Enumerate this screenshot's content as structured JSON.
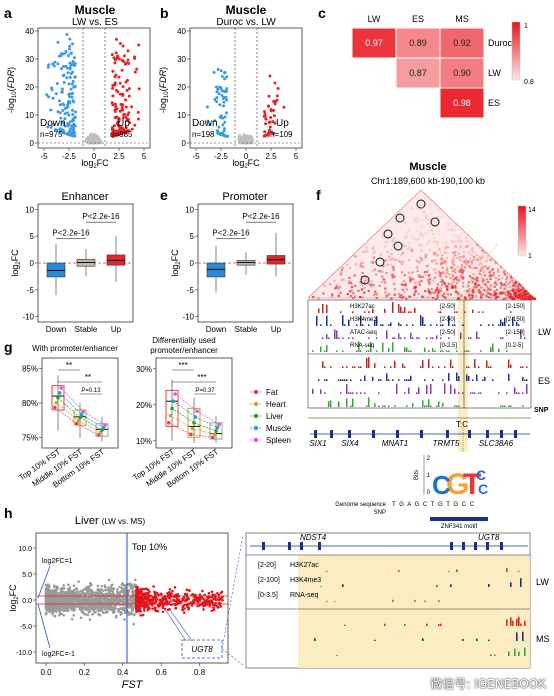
{
  "panels": {
    "a": {
      "letter": "a",
      "title": "Muscle",
      "subtitle": "LW vs. ES",
      "ylabel": "-log10(FDR)",
      "xlabel": "log2FC",
      "down_label": "Down",
      "down_n": "n=975",
      "up_label": "Up",
      "up_n": "n=885",
      "xticks": [
        "-5",
        "-2.5",
        "0",
        "2.5",
        "5"
      ],
      "yticks": [
        "0",
        "10",
        "20",
        "30",
        "40"
      ]
    },
    "b": {
      "letter": "b",
      "title": "Muscle",
      "subtitle": "Duroc vs. LW",
      "ylabel": "-log10(FDR)",
      "xlabel": "log2FC",
      "down_label": "Down",
      "down_n": "n=198",
      "up_label": "Up",
      "up_n": "n=109",
      "xticks": [
        "-5",
        "-2.5",
        "0",
        "2.5",
        "5"
      ],
      "yticks": [
        "0",
        "10",
        "20",
        "30",
        "40"
      ]
    },
    "c": {
      "letter": "c",
      "cols": [
        "LW",
        "ES",
        "MS"
      ],
      "rows": [
        "Duroc",
        "LW",
        "ES"
      ],
      "cells": [
        [
          "0.97",
          "0.89",
          "0.92"
        ],
        [
          "",
          "0.87",
          "0.90"
        ],
        [
          "",
          "",
          "0.98"
        ]
      ],
      "scale_max": "1",
      "scale_min": "0.8",
      "colors": {
        "high": "#e8141e",
        "low": "#fde6e6"
      }
    },
    "d": {
      "letter": "d",
      "title": "Enhancer",
      "ylabel": "log2FC",
      "categories": [
        "Down",
        "Stable",
        "Up"
      ],
      "p1": "P<2.2e-16",
      "p2": "P<2.2e-16",
      "yticks": [
        "-10",
        "-5",
        "0",
        "5",
        "10"
      ]
    },
    "e": {
      "letter": "e",
      "title": "Promoter",
      "ylabel": "log2FC",
      "categories": [
        "Down",
        "Stable",
        "Up"
      ],
      "p1": "P<2.2e-16",
      "p2": "P<2.2e-16",
      "yticks": [
        "-10",
        "-5",
        "0",
        "5",
        "10"
      ]
    },
    "f": {
      "letter": "f",
      "title": "Muscle",
      "coords": "Chr1:189,600 kb-190,100 kb",
      "scale_max": "14",
      "scale_min": "1",
      "tracks_lw": [
        {
          "name": "H3K27ac",
          "range": "[2-50]",
          "range_r": "[2-150]"
        },
        {
          "name": "H3K4me3",
          "range": "[2-50]",
          "range_r": "[2-150]"
        },
        {
          "name": "ATAC-seq",
          "range": "[2-50]",
          "range_r": "[2-150]"
        },
        {
          "name": "RNA-seq",
          "range": "[0-2.5]",
          "range_r": "[0.2-5]"
        }
      ],
      "group_lw": "LW",
      "group_es": "ES",
      "snp_label": "SNP",
      "snp_allele": "T:C",
      "genes": [
        "SIX1",
        "SIX4",
        "MNAT1",
        "TRMT5",
        "SLC38A6"
      ],
      "motif_axis": "Bits",
      "motif_bits": [
        "2",
        "1",
        "0"
      ],
      "genome_sequence_label": "Genome sequence",
      "genome_sequence": "T G A G C T G T G C C",
      "snp_row": "SNP",
      "motif_name": "ZNF341 motif",
      "motif_snp_letter": "C"
    },
    "g": {
      "letter": "g",
      "title1": "With promoter/enhancer",
      "title2a": "Differentially used",
      "title2b": "promoter/enhancer",
      "yticks1": [
        "75%",
        "80%",
        "85%"
      ],
      "yticks2": [
        "10%",
        "20%",
        "30%"
      ],
      "categories": [
        "Top 10% FST",
        "Middle 10% FST",
        "Bottom 10% FST"
      ],
      "sig1": [
        "**",
        "**"
      ],
      "p1": "P=0.13",
      "sig2": [
        "***",
        "***"
      ],
      "p2": "P=0.37",
      "legend": [
        {
          "name": "Fat",
          "color": "#e8414a"
        },
        {
          "name": "Heart",
          "color": "#c9a227"
        },
        {
          "name": "Liver",
          "color": "#2ca02c"
        },
        {
          "name": "Muscle",
          "color": "#1fa3c9"
        },
        {
          "name": "Spleen",
          "color": "#d35fd6"
        }
      ]
    },
    "h": {
      "letter": "h",
      "title": "Liver",
      "subtitle": "(LW vs. MS)",
      "ylabel": "log2FC",
      "xlabel": "FST",
      "xticks": [
        "0.0",
        "0.2",
        "0.4",
        "0.6",
        "0.8"
      ],
      "yticks": [
        "-10.0",
        "-5.0",
        "0.0",
        "5.0",
        "10.0"
      ],
      "top_label": "Top 10%",
      "fc_pos": "log2FC=1",
      "fc_neg": "log2FC=-1",
      "gene_box": "UGT8",
      "genes": [
        "NDST4",
        "UGT8"
      ],
      "tracks": [
        {
          "range": "[2-20]",
          "name": "H3K27ac"
        },
        {
          "range": "[2-100]",
          "name": "H3K4me3"
        },
        {
          "range": "[0-3.5]",
          "name": "RNA-seq"
        }
      ],
      "group_lw": "LW",
      "group_ms": "MS"
    }
  },
  "watermark": "微信号: IGENEBOOK"
}
